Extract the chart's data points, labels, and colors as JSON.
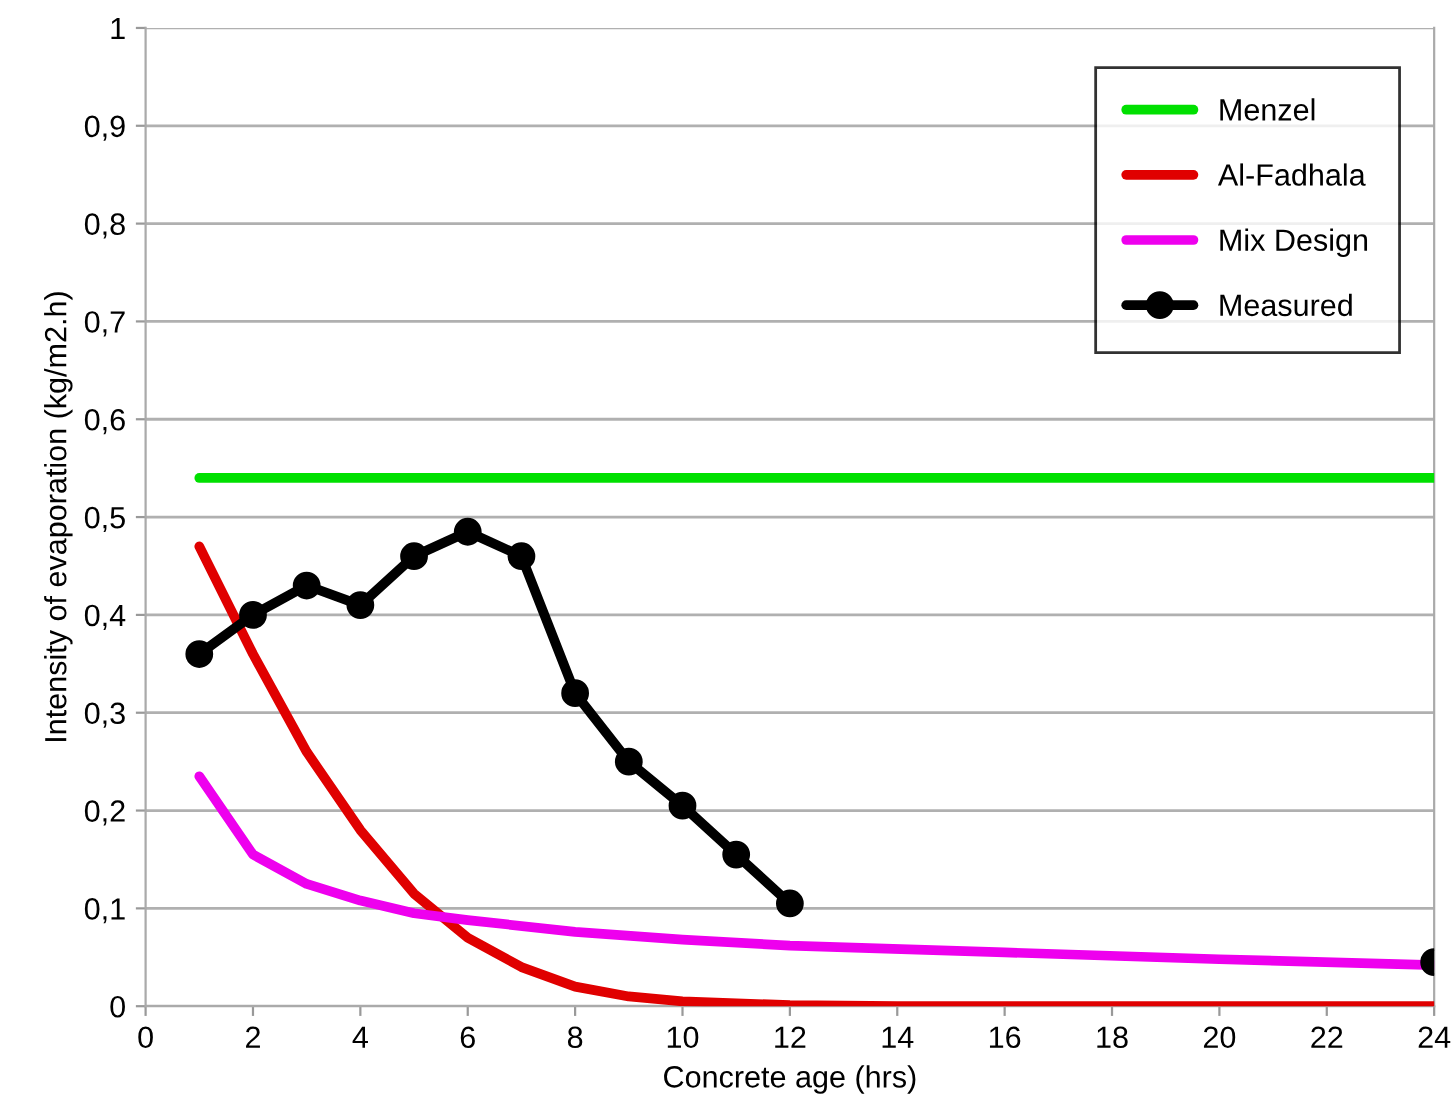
{
  "chart_data": {
    "type": "line",
    "xlabel": "Concrete age (hrs)",
    "ylabel": "Intensity of evaporation (kg/m2.h)",
    "xlim": [
      0,
      24
    ],
    "xticks": [
      0,
      2,
      4,
      6,
      8,
      10,
      12,
      14,
      16,
      18,
      20,
      22,
      24
    ],
    "ylim": [
      0,
      1
    ],
    "yticks": [
      {
        "value": 0,
        "label": "0"
      },
      {
        "value": 0.1,
        "label": "0,1"
      },
      {
        "value": 0.2,
        "label": "0,2"
      },
      {
        "value": 0.3,
        "label": "0,3"
      },
      {
        "value": 0.4,
        "label": "0,4"
      },
      {
        "value": 0.5,
        "label": "0,5"
      },
      {
        "value": 0.6,
        "label": "0,6"
      },
      {
        "value": 0.7,
        "label": "0,7"
      },
      {
        "value": 0.8,
        "label": "0,8"
      },
      {
        "value": 0.9,
        "label": "0,9"
      },
      {
        "value": 1,
        "label": "1"
      }
    ],
    "grid": "y",
    "legend": "top right",
    "series": [
      {
        "name": "Menzel",
        "color": "#00e000",
        "marker": "none",
        "x": [
          1,
          24
        ],
        "values": [
          0.54,
          0.54
        ]
      },
      {
        "name": "Al-Fadhala",
        "color": "#e00000",
        "marker": "none",
        "x": [
          1,
          2,
          3,
          4,
          5,
          6,
          7,
          8,
          9,
          10,
          12,
          14,
          24
        ],
        "values": [
          0.47,
          0.36,
          0.26,
          0.18,
          0.115,
          0.07,
          0.04,
          0.02,
          0.01,
          0.005,
          0.001,
          0,
          0
        ]
      },
      {
        "name": "Mix Design",
        "color": "#ee00ee",
        "marker": "none",
        "x": [
          1,
          2,
          3,
          4,
          5,
          6,
          8,
          10,
          12,
          16,
          20,
          24
        ],
        "values": [
          0.235,
          0.155,
          0.125,
          0.108,
          0.095,
          0.088,
          0.076,
          0.068,
          0.062,
          0.055,
          0.048,
          0.042
        ]
      },
      {
        "name": "Measured",
        "color": "#000000",
        "marker": "circle",
        "x": [
          1,
          2,
          3,
          4,
          5,
          6,
          7,
          8,
          9,
          10,
          11,
          12,
          13,
          24
        ],
        "values": [
          0.36,
          0.4,
          0.43,
          0.41,
          0.46,
          0.485,
          0.46,
          0.32,
          0.25,
          0.205,
          0.155,
          0.105,
          null,
          0.045
        ]
      }
    ]
  }
}
